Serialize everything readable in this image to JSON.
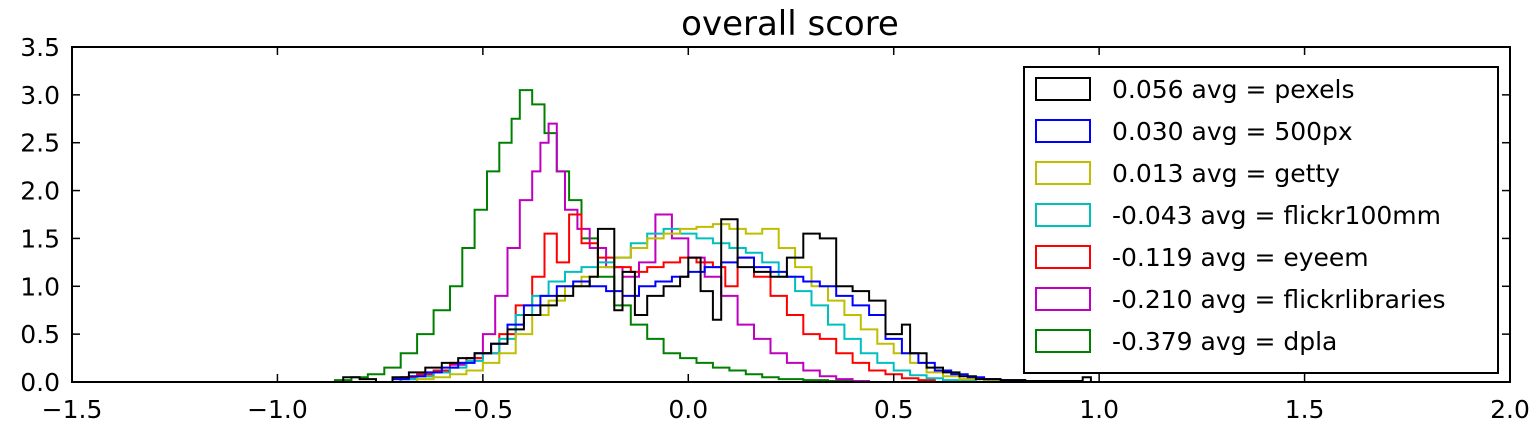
{
  "chart_data": {
    "type": "histogram",
    "title": "overall score",
    "xlabel": "",
    "ylabel": "",
    "xlim": [
      -1.5,
      2.0
    ],
    "ylim": [
      0.0,
      3.5
    ],
    "xticks": [
      -1.5,
      -1.0,
      -0.5,
      0.0,
      0.5,
      1.0,
      1.5,
      2.0
    ],
    "xtick_labels": [
      "−1.5",
      "−1.0",
      "−0.5",
      "0.0",
      "0.5",
      "1.0",
      "1.5",
      "2.0"
    ],
    "yticks": [
      0.0,
      0.5,
      1.0,
      1.5,
      2.0,
      2.5,
      3.0,
      3.5
    ],
    "ytick_labels": [
      "0.0",
      "0.5",
      "1.0",
      "1.5",
      "2.0",
      "2.5",
      "3.0",
      "3.5"
    ],
    "grid": false,
    "legend_position": "upper-right",
    "series": [
      {
        "name": "0.056 avg = pexels",
        "color": "#000000",
        "points": [
          [
            -0.86,
            0.0
          ],
          [
            -0.84,
            0.05
          ],
          [
            -0.8,
            0.03
          ],
          [
            -0.76,
            0.0
          ],
          [
            -0.72,
            0.05
          ],
          [
            -0.68,
            0.1
          ],
          [
            -0.64,
            0.15
          ],
          [
            -0.6,
            0.2
          ],
          [
            -0.56,
            0.25
          ],
          [
            -0.52,
            0.3
          ],
          [
            -0.48,
            0.4
          ],
          [
            -0.44,
            0.55
          ],
          [
            -0.4,
            0.7
          ],
          [
            -0.36,
            0.8
          ],
          [
            -0.32,
            0.9
          ],
          [
            -0.28,
            1.0
          ],
          [
            -0.24,
            1.1
          ],
          [
            -0.22,
            1.6
          ],
          [
            -0.18,
            0.75
          ],
          [
            -0.16,
            1.15
          ],
          [
            -0.13,
            0.7
          ],
          [
            -0.1,
            0.9
          ],
          [
            -0.06,
            1.0
          ],
          [
            -0.02,
            1.1
          ],
          [
            0.0,
            1.3
          ],
          [
            0.03,
            0.95
          ],
          [
            0.06,
            0.65
          ],
          [
            0.08,
            1.7
          ],
          [
            0.12,
            1.2
          ],
          [
            0.16,
            1.15
          ],
          [
            0.2,
            1.1
          ],
          [
            0.24,
            1.3
          ],
          [
            0.28,
            1.55
          ],
          [
            0.32,
            1.5
          ],
          [
            0.36,
            1.0
          ],
          [
            0.4,
            0.95
          ],
          [
            0.44,
            0.85
          ],
          [
            0.48,
            0.5
          ],
          [
            0.52,
            0.6
          ],
          [
            0.54,
            0.3
          ],
          [
            0.58,
            0.15
          ],
          [
            0.62,
            0.1
          ],
          [
            0.66,
            0.06
          ],
          [
            0.7,
            0.03
          ],
          [
            0.76,
            0.02
          ],
          [
            0.82,
            0.01
          ],
          [
            0.96,
            0.05
          ],
          [
            0.98,
            0.0
          ]
        ]
      },
      {
        "name": "0.030 avg = 500px",
        "color": "#0000ff",
        "points": [
          [
            -0.76,
            0.0
          ],
          [
            -0.72,
            0.03
          ],
          [
            -0.68,
            0.06
          ],
          [
            -0.64,
            0.1
          ],
          [
            -0.6,
            0.15
          ],
          [
            -0.56,
            0.2
          ],
          [
            -0.52,
            0.3
          ],
          [
            -0.48,
            0.4
          ],
          [
            -0.44,
            0.6
          ],
          [
            -0.4,
            0.8
          ],
          [
            -0.36,
            0.9
          ],
          [
            -0.32,
            1.0
          ],
          [
            -0.28,
            1.05
          ],
          [
            -0.24,
            1.0
          ],
          [
            -0.2,
            0.95
          ],
          [
            -0.16,
            0.9
          ],
          [
            -0.12,
            1.0
          ],
          [
            -0.08,
            1.05
          ],
          [
            -0.04,
            1.1
          ],
          [
            0.0,
            1.15
          ],
          [
            0.04,
            1.2
          ],
          [
            0.08,
            1.25
          ],
          [
            0.12,
            1.3
          ],
          [
            0.16,
            1.2
          ],
          [
            0.2,
            1.15
          ],
          [
            0.24,
            1.1
          ],
          [
            0.28,
            1.05
          ],
          [
            0.32,
            1.0
          ],
          [
            0.36,
            0.9
          ],
          [
            0.4,
            0.8
          ],
          [
            0.44,
            0.7
          ],
          [
            0.48,
            0.45
          ],
          [
            0.52,
            0.3
          ],
          [
            0.56,
            0.2
          ],
          [
            0.6,
            0.12
          ],
          [
            0.64,
            0.08
          ],
          [
            0.68,
            0.05
          ],
          [
            0.72,
            0.03
          ],
          [
            0.76,
            0.02
          ],
          [
            0.82,
            0.01
          ],
          [
            0.9,
            0.0
          ]
        ]
      },
      {
        "name": "0.013 avg = getty",
        "color": "#bfbf00",
        "points": [
          [
            -0.7,
            0.0
          ],
          [
            -0.66,
            0.03
          ],
          [
            -0.62,
            0.05
          ],
          [
            -0.58,
            0.08
          ],
          [
            -0.54,
            0.12
          ],
          [
            -0.5,
            0.2
          ],
          [
            -0.46,
            0.3
          ],
          [
            -0.42,
            0.5
          ],
          [
            -0.38,
            0.7
          ],
          [
            -0.34,
            0.85
          ],
          [
            -0.3,
            1.0
          ],
          [
            -0.26,
            1.1
          ],
          [
            -0.22,
            1.2
          ],
          [
            -0.18,
            1.3
          ],
          [
            -0.14,
            1.4
          ],
          [
            -0.1,
            1.5
          ],
          [
            -0.06,
            1.55
          ],
          [
            -0.02,
            1.6
          ],
          [
            0.02,
            1.62
          ],
          [
            0.06,
            1.65
          ],
          [
            0.1,
            1.6
          ],
          [
            0.14,
            1.55
          ],
          [
            0.18,
            1.6
          ],
          [
            0.22,
            1.4
          ],
          [
            0.26,
            1.2
          ],
          [
            0.3,
            1.0
          ],
          [
            0.34,
            0.85
          ],
          [
            0.38,
            0.7
          ],
          [
            0.42,
            0.55
          ],
          [
            0.46,
            0.4
          ],
          [
            0.5,
            0.3
          ],
          [
            0.54,
            0.2
          ],
          [
            0.58,
            0.1
          ],
          [
            0.62,
            0.06
          ],
          [
            0.66,
            0.03
          ],
          [
            0.72,
            0.01
          ],
          [
            0.76,
            0.0
          ]
        ]
      },
      {
        "name": "-0.043 avg = flickr100mm",
        "color": "#00bfbf",
        "points": [
          [
            -0.74,
            0.0
          ],
          [
            -0.7,
            0.03
          ],
          [
            -0.66,
            0.06
          ],
          [
            -0.62,
            0.1
          ],
          [
            -0.58,
            0.15
          ],
          [
            -0.54,
            0.22
          ],
          [
            -0.5,
            0.3
          ],
          [
            -0.46,
            0.45
          ],
          [
            -0.42,
            0.7
          ],
          [
            -0.38,
            0.9
          ],
          [
            -0.34,
            1.05
          ],
          [
            -0.3,
            1.15
          ],
          [
            -0.26,
            1.2
          ],
          [
            -0.22,
            1.25
          ],
          [
            -0.18,
            1.3
          ],
          [
            -0.14,
            1.45
          ],
          [
            -0.1,
            1.55
          ],
          [
            -0.06,
            1.6
          ],
          [
            -0.02,
            1.55
          ],
          [
            0.02,
            1.5
          ],
          [
            0.06,
            1.45
          ],
          [
            0.1,
            1.4
          ],
          [
            0.14,
            1.35
          ],
          [
            0.18,
            1.25
          ],
          [
            0.22,
            1.1
          ],
          [
            0.26,
            0.95
          ],
          [
            0.3,
            0.8
          ],
          [
            0.34,
            0.6
          ],
          [
            0.38,
            0.45
          ],
          [
            0.42,
            0.3
          ],
          [
            0.46,
            0.2
          ],
          [
            0.5,
            0.12
          ],
          [
            0.54,
            0.07
          ],
          [
            0.58,
            0.04
          ],
          [
            0.62,
            0.02
          ],
          [
            0.66,
            0.01
          ],
          [
            0.7,
            0.0
          ]
        ]
      },
      {
        "name": "-0.119 avg = eyeem",
        "color": "#ff0000",
        "points": [
          [
            -0.74,
            0.0
          ],
          [
            -0.7,
            0.05
          ],
          [
            -0.66,
            0.08
          ],
          [
            -0.62,
            0.12
          ],
          [
            -0.58,
            0.2
          ],
          [
            -0.54,
            0.25
          ],
          [
            -0.5,
            0.3
          ],
          [
            -0.46,
            0.5
          ],
          [
            -0.42,
            0.8
          ],
          [
            -0.38,
            1.1
          ],
          [
            -0.35,
            1.55
          ],
          [
            -0.32,
            1.25
          ],
          [
            -0.29,
            1.75
          ],
          [
            -0.26,
            1.45
          ],
          [
            -0.22,
            1.3
          ],
          [
            -0.18,
            1.2
          ],
          [
            -0.14,
            1.15
          ],
          [
            -0.1,
            1.2
          ],
          [
            -0.06,
            1.25
          ],
          [
            -0.02,
            1.3
          ],
          [
            0.02,
            1.25
          ],
          [
            0.06,
            1.2
          ],
          [
            0.09,
            1.0
          ],
          [
            0.12,
            1.3
          ],
          [
            0.16,
            1.1
          ],
          [
            0.2,
            0.9
          ],
          [
            0.24,
            0.7
          ],
          [
            0.28,
            0.5
          ],
          [
            0.32,
            0.45
          ],
          [
            0.36,
            0.3
          ],
          [
            0.4,
            0.2
          ],
          [
            0.44,
            0.12
          ],
          [
            0.48,
            0.08
          ],
          [
            0.52,
            0.04
          ],
          [
            0.56,
            0.02
          ],
          [
            0.6,
            0.0
          ]
        ]
      },
      {
        "name": "-0.210 avg = flickrlibraries",
        "color": "#bf00bf",
        "points": [
          [
            -0.74,
            0.0
          ],
          [
            -0.7,
            0.03
          ],
          [
            -0.66,
            0.06
          ],
          [
            -0.62,
            0.1
          ],
          [
            -0.58,
            0.18
          ],
          [
            -0.54,
            0.25
          ],
          [
            -0.5,
            0.5
          ],
          [
            -0.47,
            0.9
          ],
          [
            -0.44,
            1.4
          ],
          [
            -0.41,
            1.9
          ],
          [
            -0.38,
            2.2
          ],
          [
            -0.36,
            2.5
          ],
          [
            -0.34,
            2.7
          ],
          [
            -0.32,
            2.2
          ],
          [
            -0.3,
            1.8
          ],
          [
            -0.27,
            1.6
          ],
          [
            -0.24,
            1.4
          ],
          [
            -0.2,
            1.2
          ],
          [
            -0.16,
            1.1
          ],
          [
            -0.12,
            1.25
          ],
          [
            -0.08,
            1.75
          ],
          [
            -0.04,
            1.5
          ],
          [
            0.0,
            1.3
          ],
          [
            0.04,
            1.1
          ],
          [
            0.08,
            0.9
          ],
          [
            0.12,
            0.6
          ],
          [
            0.16,
            0.45
          ],
          [
            0.2,
            0.3
          ],
          [
            0.24,
            0.2
          ],
          [
            0.28,
            0.12
          ],
          [
            0.32,
            0.06
          ],
          [
            0.36,
            0.03
          ],
          [
            0.4,
            0.01
          ],
          [
            0.44,
            0.0
          ]
        ]
      },
      {
        "name": "-0.379 avg = dpla",
        "color": "#008000",
        "points": [
          [
            -0.92,
            0.0
          ],
          [
            -0.86,
            0.02
          ],
          [
            -0.82,
            0.05
          ],
          [
            -0.78,
            0.08
          ],
          [
            -0.74,
            0.15
          ],
          [
            -0.7,
            0.3
          ],
          [
            -0.66,
            0.5
          ],
          [
            -0.62,
            0.75
          ],
          [
            -0.58,
            1.0
          ],
          [
            -0.55,
            1.4
          ],
          [
            -0.52,
            1.8
          ],
          [
            -0.49,
            2.2
          ],
          [
            -0.46,
            2.5
          ],
          [
            -0.43,
            2.75
          ],
          [
            -0.41,
            3.05
          ],
          [
            -0.38,
            2.9
          ],
          [
            -0.35,
            2.6
          ],
          [
            -0.32,
            2.2
          ],
          [
            -0.29,
            1.9
          ],
          [
            -0.26,
            1.5
          ],
          [
            -0.22,
            1.1
          ],
          [
            -0.18,
            0.8
          ],
          [
            -0.14,
            0.6
          ],
          [
            -0.1,
            0.45
          ],
          [
            -0.06,
            0.3
          ],
          [
            -0.02,
            0.25
          ],
          [
            0.02,
            0.2
          ],
          [
            0.06,
            0.15
          ],
          [
            0.1,
            0.12
          ],
          [
            0.14,
            0.08
          ],
          [
            0.18,
            0.05
          ],
          [
            0.22,
            0.03
          ],
          [
            0.28,
            0.02
          ],
          [
            0.34,
            0.01
          ],
          [
            0.4,
            0.0
          ]
        ]
      }
    ]
  }
}
